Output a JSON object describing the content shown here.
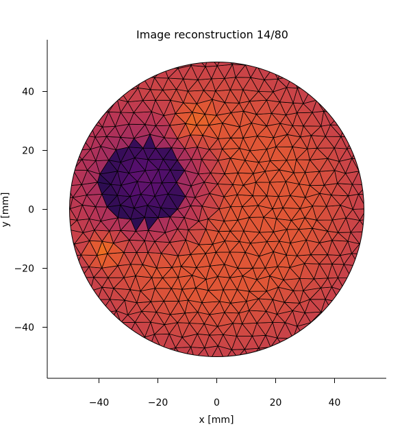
{
  "chart_data": {
    "type": "heatmap",
    "title": "Image reconstruction 14/80",
    "xlabel": "x [mm]",
    "ylabel": "y [mm]",
    "xlim": [
      -57,
      57
    ],
    "ylim": [
      -58,
      57
    ],
    "xticks": [
      -40,
      -20,
      0,
      20,
      40
    ],
    "yticks": [
      -40,
      -20,
      0,
      20,
      40
    ],
    "xtick_labels": [
      "−40",
      "−20",
      "0",
      "20",
      "40"
    ],
    "ytick_labels": [
      "−40",
      "−20",
      "0",
      "20",
      "40"
    ],
    "grid": false,
    "mesh": "triangular",
    "domain": {
      "shape": "circle",
      "center": [
        0,
        0
      ],
      "radius_mm": 50
    },
    "colormap": "inferno",
    "background_level": 0.62,
    "features": [
      {
        "kind": "low-conductivity inclusion",
        "center": [
          -26,
          9
        ],
        "radius": 14,
        "level": 0.0
      },
      {
        "kind": "halo",
        "center": [
          -24,
          10
        ],
        "radius": 30,
        "level": 0.3
      },
      {
        "kind": "bright spot",
        "center": [
          -8,
          29
        ],
        "radius": 10,
        "level": 0.72
      },
      {
        "kind": "bright spot",
        "center": [
          -38,
          -14
        ],
        "radius": 8,
        "level": 0.75
      }
    ]
  }
}
